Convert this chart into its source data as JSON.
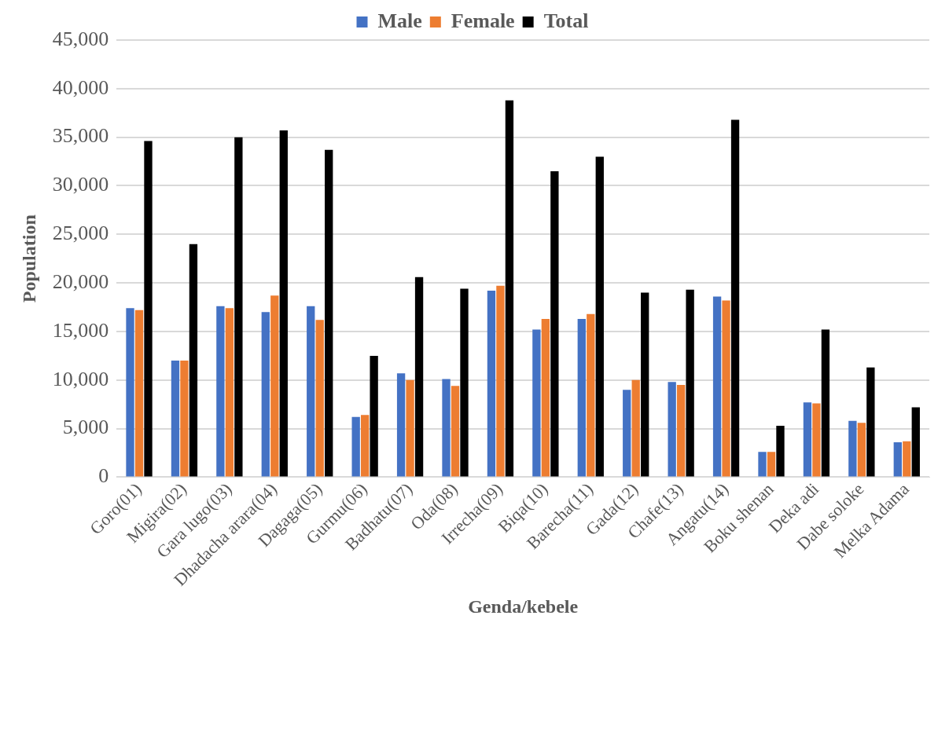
{
  "chart_data": {
    "type": "bar",
    "xlabel": "Genda/kebele",
    "ylabel": "Population",
    "categories": [
      "Goro(01)",
      "Migira(02)",
      "Gara lugo(03)",
      "Dhadacha arara(04)",
      "Dagaga(05)",
      "Gurmu(06)",
      "Badhatu(07)",
      "Oda(08)",
      "Irrecha(09)",
      "Biqa(10)",
      "Barecha(11)",
      "Gada(12)",
      "Chafe(13)",
      "Angatu(14)",
      "Boku shenan",
      "Deka adi",
      "Dabe soloke",
      "Melka Adama"
    ],
    "series": [
      {
        "name": "Male",
        "color": "#4472c4",
        "values": [
          17400,
          12000,
          17600,
          17000,
          17600,
          6200,
          10700,
          10100,
          19200,
          15200,
          16300,
          9000,
          9800,
          18600,
          2600,
          7700,
          5800,
          3600
        ]
      },
      {
        "name": "Female",
        "color": "#ed7d31",
        "values": [
          17200,
          12000,
          17400,
          18700,
          16200,
          6400,
          10000,
          9400,
          19700,
          16300,
          16800,
          10000,
          9500,
          18200,
          2600,
          7600,
          5600,
          3700
        ]
      },
      {
        "name": "Total",
        "color": "#000000",
        "values": [
          34600,
          24000,
          35000,
          35700,
          33700,
          12500,
          20600,
          19400,
          38800,
          31500,
          33000,
          19000,
          19300,
          36800,
          5300,
          15200,
          11300,
          7200
        ]
      }
    ],
    "ylim": [
      0,
      45000
    ],
    "yticks": [
      {
        "value": 0,
        "label": "0"
      },
      {
        "value": 5000,
        "label": "5,000"
      },
      {
        "value": 10000,
        "label": "10,000"
      },
      {
        "value": 15000,
        "label": "15,000"
      },
      {
        "value": 20000,
        "label": "20,000"
      },
      {
        "value": 25000,
        "label": "25,000"
      },
      {
        "value": 30000,
        "label": "30,000"
      },
      {
        "value": 35000,
        "label": "35,000"
      },
      {
        "value": 40000,
        "label": "40,000"
      },
      {
        "value": 45000,
        "label": "45,000"
      }
    ],
    "grid": "y",
    "legend": "top"
  }
}
